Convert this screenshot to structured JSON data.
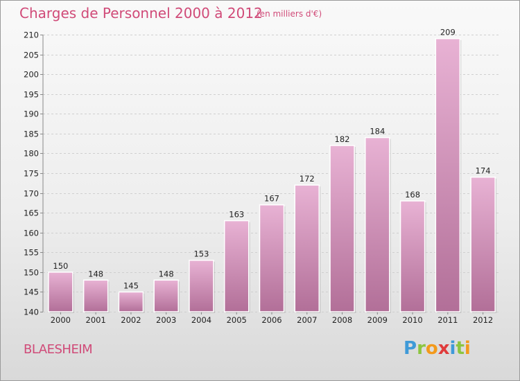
{
  "chart_data": {
    "type": "bar",
    "title": "Charges de Personnel 2000 à 2012",
    "subtitle": "(en milliers d'€)",
    "categories": [
      "2000",
      "2001",
      "2002",
      "2003",
      "2004",
      "2005",
      "2006",
      "2007",
      "2008",
      "2009",
      "2010",
      "2011",
      "2012"
    ],
    "values": [
      150,
      148,
      145,
      148,
      153,
      163,
      167,
      172,
      182,
      184,
      168,
      209,
      174
    ],
    "ylim": [
      140,
      210
    ],
    "yticks": [
      140,
      145,
      150,
      155,
      160,
      165,
      170,
      175,
      180,
      185,
      190,
      195,
      200,
      205,
      210
    ],
    "grid": true,
    "xlabel": "",
    "ylabel": "",
    "colors": {
      "bar_light": "#e8b2d4",
      "bar_dark": "#b26f98",
      "title": "#d04a78"
    }
  },
  "commune": "BLAESHEIM",
  "logo": {
    "letters": [
      {
        "char": "P",
        "color": "#3f9ad8"
      },
      {
        "char": "r",
        "color": "#8cc540"
      },
      {
        "char": "o",
        "color": "#f39a1c"
      },
      {
        "char": "x",
        "color": "#e03c3c"
      },
      {
        "char": "i",
        "color": "#3f9ad8"
      },
      {
        "char": "t",
        "color": "#8cc540"
      },
      {
        "char": "i",
        "color": "#f39a1c"
      }
    ]
  }
}
